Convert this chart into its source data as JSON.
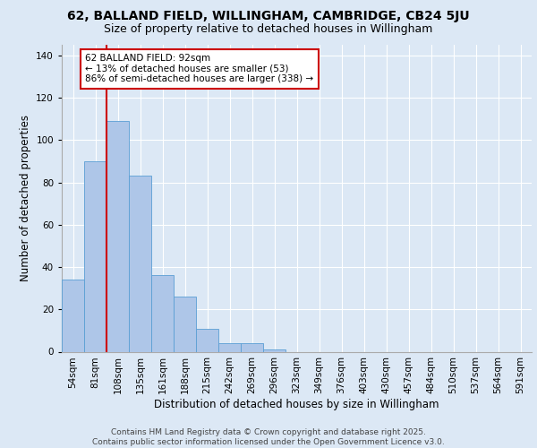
{
  "title_line1": "62, BALLAND FIELD, WILLINGHAM, CAMBRIDGE, CB24 5JU",
  "title_line2": "Size of property relative to detached houses in Willingham",
  "xlabel": "Distribution of detached houses by size in Willingham",
  "ylabel": "Number of detached properties",
  "categories": [
    "54sqm",
    "81sqm",
    "108sqm",
    "135sqm",
    "161sqm",
    "188sqm",
    "215sqm",
    "242sqm",
    "269sqm",
    "296sqm",
    "323sqm",
    "349sqm",
    "376sqm",
    "403sqm",
    "430sqm",
    "457sqm",
    "484sqm",
    "510sqm",
    "537sqm",
    "564sqm",
    "591sqm"
  ],
  "values": [
    34,
    90,
    109,
    83,
    36,
    26,
    11,
    4,
    4,
    1,
    0,
    0,
    0,
    0,
    0,
    0,
    0,
    0,
    0,
    0,
    0
  ],
  "bar_color": "#aec6e8",
  "bar_edge_color": "#5a9fd4",
  "vline_color": "#cc0000",
  "annotation_text": "62 BALLAND FIELD: 92sqm\n← 13% of detached houses are smaller (53)\n86% of semi-detached houses are larger (338) →",
  "annotation_box_color": "#ffffff",
  "annotation_box_edge_color": "#cc0000",
  "ylim": [
    0,
    145
  ],
  "yticks": [
    0,
    20,
    40,
    60,
    80,
    100,
    120,
    140
  ],
  "background_color": "#dce8f5",
  "plot_bg_color": "#dce8f5",
  "footer_line1": "Contains HM Land Registry data © Crown copyright and database right 2025.",
  "footer_line2": "Contains public sector information licensed under the Open Government Licence v3.0.",
  "grid_color": "#ffffff",
  "title_fontsize": 10,
  "subtitle_fontsize": 9,
  "axis_label_fontsize": 8.5,
  "tick_fontsize": 7.5,
  "annotation_fontsize": 7.5,
  "footer_fontsize": 6.5
}
